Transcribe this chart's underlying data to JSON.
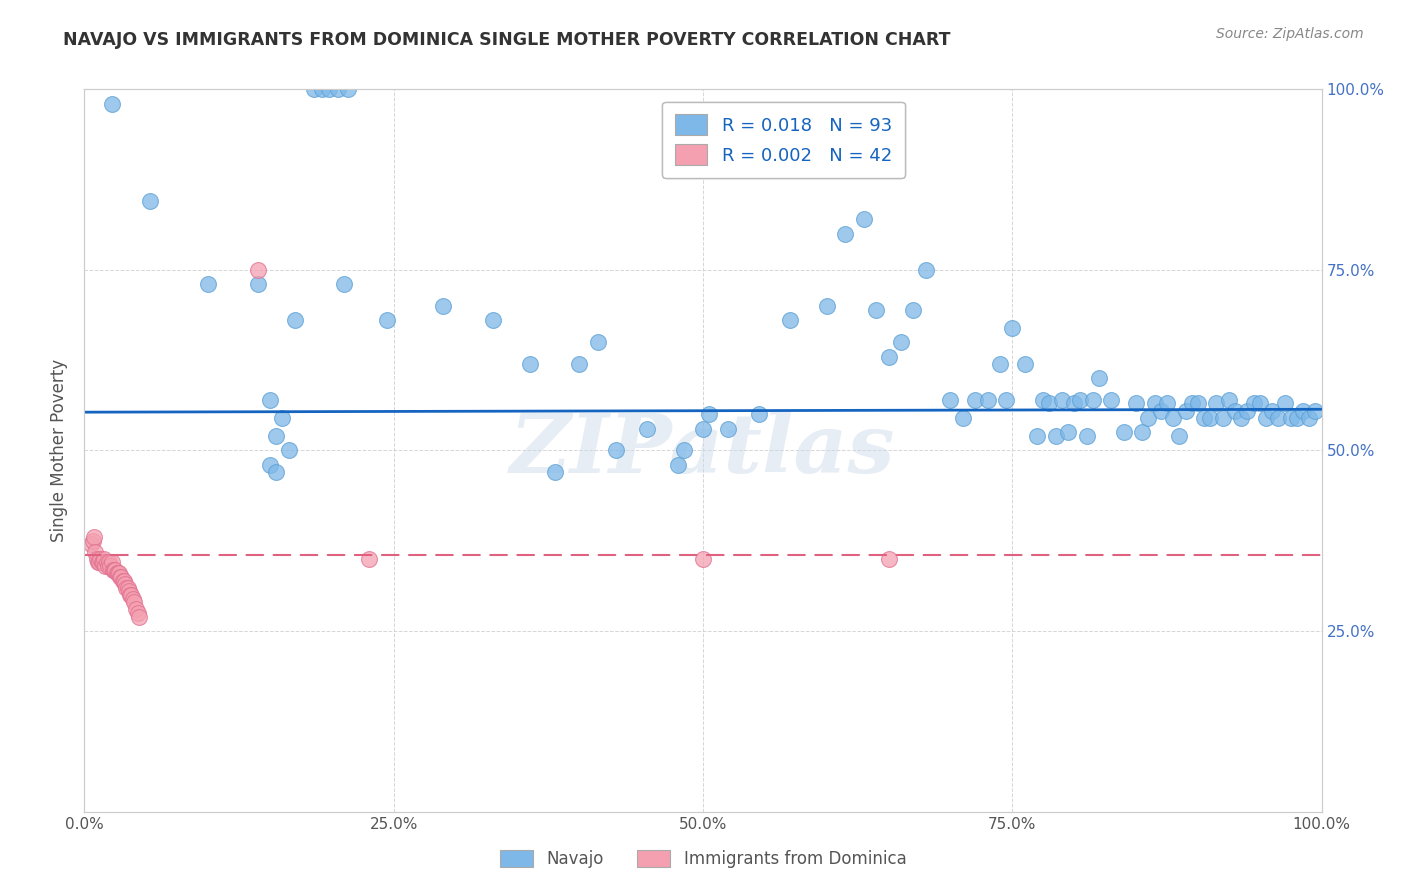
{
  "title": "NAVAJO VS IMMIGRANTS FROM DOMINICA SINGLE MOTHER POVERTY CORRELATION CHART",
  "source": "Source: ZipAtlas.com",
  "ylabel": "Single Mother Poverty",
  "legend_bottom": [
    "Navajo",
    "Immigrants from Dominica"
  ],
  "navajo_R": "0.018",
  "navajo_N": "93",
  "dominica_R": "0.002",
  "dominica_N": "42",
  "navajo_color": "#7eb8e8",
  "dominica_color": "#f4a0b0",
  "navajo_line_color": "#1565c0",
  "dominica_line_color": "#e06080",
  "background_color": "#ffffff",
  "watermark": "ZIPatlas",
  "navajo_x": [
    0.022,
    0.053,
    0.186,
    0.192,
    0.198,
    0.205,
    0.213,
    0.1,
    0.14,
    0.17,
    0.21,
    0.245,
    0.29,
    0.33,
    0.36,
    0.4,
    0.415,
    0.455,
    0.5,
    0.505,
    0.52,
    0.545,
    0.57,
    0.6,
    0.615,
    0.63,
    0.64,
    0.65,
    0.66,
    0.67,
    0.68,
    0.7,
    0.71,
    0.72,
    0.73,
    0.74,
    0.745,
    0.75,
    0.76,
    0.77,
    0.775,
    0.78,
    0.785,
    0.79,
    0.795,
    0.8,
    0.805,
    0.81,
    0.815,
    0.82,
    0.83,
    0.84,
    0.85,
    0.855,
    0.86,
    0.865,
    0.87,
    0.875,
    0.88,
    0.885,
    0.89,
    0.895,
    0.9,
    0.905,
    0.91,
    0.915,
    0.92,
    0.925,
    0.93,
    0.935,
    0.94,
    0.945,
    0.95,
    0.955,
    0.96,
    0.965,
    0.97,
    0.975,
    0.98,
    0.985,
    0.99,
    0.995,
    0.48,
    0.485,
    0.43,
    0.38,
    0.15,
    0.155,
    0.16,
    0.165,
    0.15,
    0.155
  ],
  "navajo_y": [
    0.98,
    0.845,
    1.0,
    1.0,
    1.0,
    1.0,
    1.0,
    0.73,
    0.73,
    0.68,
    0.73,
    0.68,
    0.7,
    0.68,
    0.62,
    0.62,
    0.65,
    0.53,
    0.53,
    0.55,
    0.53,
    0.55,
    0.68,
    0.7,
    0.8,
    0.82,
    0.695,
    0.63,
    0.65,
    0.695,
    0.75,
    0.57,
    0.545,
    0.57,
    0.57,
    0.62,
    0.57,
    0.67,
    0.62,
    0.52,
    0.57,
    0.565,
    0.52,
    0.57,
    0.525,
    0.565,
    0.57,
    0.52,
    0.57,
    0.6,
    0.57,
    0.525,
    0.565,
    0.525,
    0.545,
    0.565,
    0.555,
    0.565,
    0.545,
    0.52,
    0.555,
    0.565,
    0.565,
    0.545,
    0.545,
    0.565,
    0.545,
    0.57,
    0.555,
    0.545,
    0.555,
    0.565,
    0.565,
    0.545,
    0.555,
    0.545,
    0.565,
    0.545,
    0.545,
    0.555,
    0.545,
    0.555,
    0.48,
    0.5,
    0.5,
    0.47,
    0.57,
    0.52,
    0.545,
    0.5,
    0.48,
    0.47
  ],
  "dominica_x": [
    0.005,
    0.007,
    0.008,
    0.009,
    0.01,
    0.011,
    0.012,
    0.013,
    0.014,
    0.015,
    0.016,
    0.017,
    0.018,
    0.019,
    0.02,
    0.021,
    0.022,
    0.023,
    0.024,
    0.025,
    0.026,
    0.027,
    0.028,
    0.029,
    0.03,
    0.031,
    0.032,
    0.033,
    0.034,
    0.035,
    0.036,
    0.037,
    0.038,
    0.039,
    0.04,
    0.042,
    0.043,
    0.044,
    0.14,
    0.23,
    0.5,
    0.65
  ],
  "dominica_y": [
    0.37,
    0.375,
    0.38,
    0.36,
    0.35,
    0.345,
    0.345,
    0.35,
    0.345,
    0.345,
    0.35,
    0.34,
    0.345,
    0.34,
    0.345,
    0.34,
    0.345,
    0.335,
    0.335,
    0.335,
    0.33,
    0.33,
    0.33,
    0.325,
    0.325,
    0.32,
    0.32,
    0.315,
    0.31,
    0.31,
    0.305,
    0.3,
    0.3,
    0.295,
    0.29,
    0.28,
    0.275,
    0.27,
    0.75,
    0.35,
    0.35,
    0.35
  ],
  "xlim": [
    0.0,
    1.0
  ],
  "ylim": [
    0.0,
    1.0
  ],
  "xticks": [
    0.0,
    0.25,
    0.5,
    0.75,
    1.0
  ],
  "yticks": [
    0.25,
    0.5,
    0.75,
    1.0
  ],
  "xticklabels": [
    "0.0%",
    "25.0%",
    "50.0%",
    "75.0%",
    "100.0%"
  ],
  "yticklabels": [
    "25.0%",
    "50.0%",
    "75.0%",
    "100.0%"
  ],
  "navajo_line_y_intercept": 0.553,
  "navajo_line_slope": 0.004,
  "dominica_line_y_intercept": 0.355,
  "dominica_line_slope": 0.0
}
